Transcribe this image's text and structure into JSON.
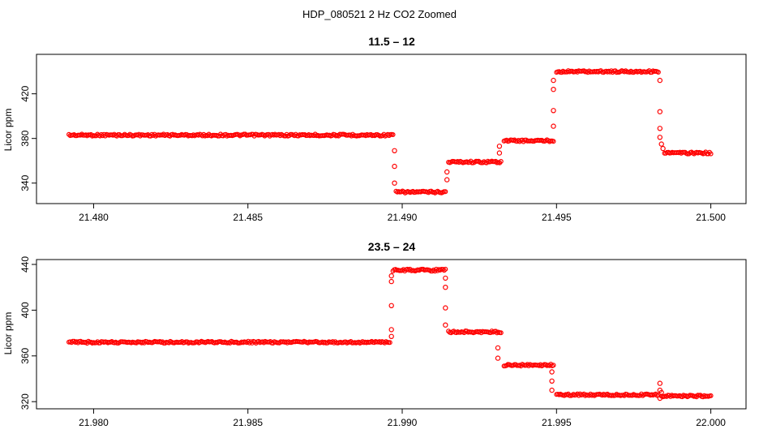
{
  "figure": {
    "title": "HDP_080521  2 Hz CO2 Zoomed"
  },
  "chart_data": [
    {
      "type": "scatter",
      "title": "11.5 – 12",
      "ylabel": "Licor ppm",
      "xlabel": "",
      "xlim": [
        21.4792,
        21.5003
      ],
      "ylim": [
        326,
        451
      ],
      "xticks": [
        21.48,
        21.485,
        21.49,
        21.495,
        21.5
      ],
      "xtick_labels": [
        "21.480",
        "21.485",
        "21.490",
        "21.495",
        "21.500"
      ],
      "yticks": [
        340,
        380,
        420
      ],
      "ytick_labels": [
        "340",
        "380",
        "420"
      ],
      "marker": "open-circle",
      "color": "#ff0000",
      "grid": false,
      "segments": [
        {
          "x_start": 21.4792,
          "x_end": 21.4897,
          "y": 383
        },
        {
          "x_start": 21.4898,
          "x_end": 21.4914,
          "y": 332
        },
        {
          "x_start": 21.4915,
          "x_end": 21.4932,
          "y": 359
        },
        {
          "x_start": 21.4933,
          "x_end": 21.4949,
          "y": 378
        },
        {
          "x_start": 21.495,
          "x_end": 21.4983,
          "y": 440
        },
        {
          "x_start": 21.4985,
          "x_end": 21.5,
          "y": 367
        }
      ],
      "transition_points": [
        {
          "x": 21.48975,
          "y": 369
        },
        {
          "x": 21.48975,
          "y": 355
        },
        {
          "x": 21.48975,
          "y": 340
        },
        {
          "x": 21.49145,
          "y": 350
        },
        {
          "x": 21.49145,
          "y": 343
        },
        {
          "x": 21.49315,
          "y": 367
        },
        {
          "x": 21.49315,
          "y": 373
        },
        {
          "x": 21.4949,
          "y": 391
        },
        {
          "x": 21.4949,
          "y": 405
        },
        {
          "x": 21.4949,
          "y": 424
        },
        {
          "x": 21.4949,
          "y": 432
        },
        {
          "x": 21.49835,
          "y": 432
        },
        {
          "x": 21.49835,
          "y": 404
        },
        {
          "x": 21.49835,
          "y": 389
        },
        {
          "x": 21.49835,
          "y": 381
        },
        {
          "x": 21.4984,
          "y": 375
        },
        {
          "x": 21.49845,
          "y": 371
        }
      ]
    },
    {
      "type": "scatter",
      "title": "23.5 – 24",
      "ylabel": "Licor ppm",
      "xlabel": "",
      "xlim": [
        21.9792,
        22.0003
      ],
      "ylim": [
        318,
        440
      ],
      "xticks": [
        21.98,
        21.985,
        21.99,
        21.995,
        22.0
      ],
      "xtick_labels": [
        "21.980",
        "21.985",
        "21.990",
        "21.995",
        "22.000"
      ],
      "yticks": [
        320,
        360,
        400,
        440
      ],
      "ytick_labels": [
        "320",
        "360",
        "400",
        "440"
      ],
      "marker": "open-circle",
      "color": "#ff0000",
      "grid": false,
      "segments": [
        {
          "x_start": 21.9792,
          "x_end": 21.9896,
          "y": 372
        },
        {
          "x_start": 21.9897,
          "x_end": 21.9914,
          "y": 435
        },
        {
          "x_start": 21.9915,
          "x_end": 21.9932,
          "y": 381
        },
        {
          "x_start": 21.9933,
          "x_end": 21.9949,
          "y": 352
        },
        {
          "x_start": 21.995,
          "x_end": 21.9983,
          "y": 326
        },
        {
          "x_start": 21.9984,
          "x_end": 22.0,
          "y": 325
        }
      ],
      "transition_points": [
        {
          "x": 21.98965,
          "y": 377
        },
        {
          "x": 21.98965,
          "y": 383
        },
        {
          "x": 21.98965,
          "y": 404
        },
        {
          "x": 21.98965,
          "y": 425
        },
        {
          "x": 21.98965,
          "y": 430
        },
        {
          "x": 21.9914,
          "y": 428
        },
        {
          "x": 21.9914,
          "y": 420
        },
        {
          "x": 21.9914,
          "y": 402
        },
        {
          "x": 21.9914,
          "y": 387
        },
        {
          "x": 21.9931,
          "y": 367
        },
        {
          "x": 21.9931,
          "y": 358
        },
        {
          "x": 21.99485,
          "y": 346
        },
        {
          "x": 21.99485,
          "y": 338
        },
        {
          "x": 21.99485,
          "y": 330
        },
        {
          "x": 21.99835,
          "y": 336
        },
        {
          "x": 21.99835,
          "y": 330
        },
        {
          "x": 21.99835,
          "y": 323
        },
        {
          "x": 21.9984,
          "y": 328
        }
      ]
    }
  ]
}
